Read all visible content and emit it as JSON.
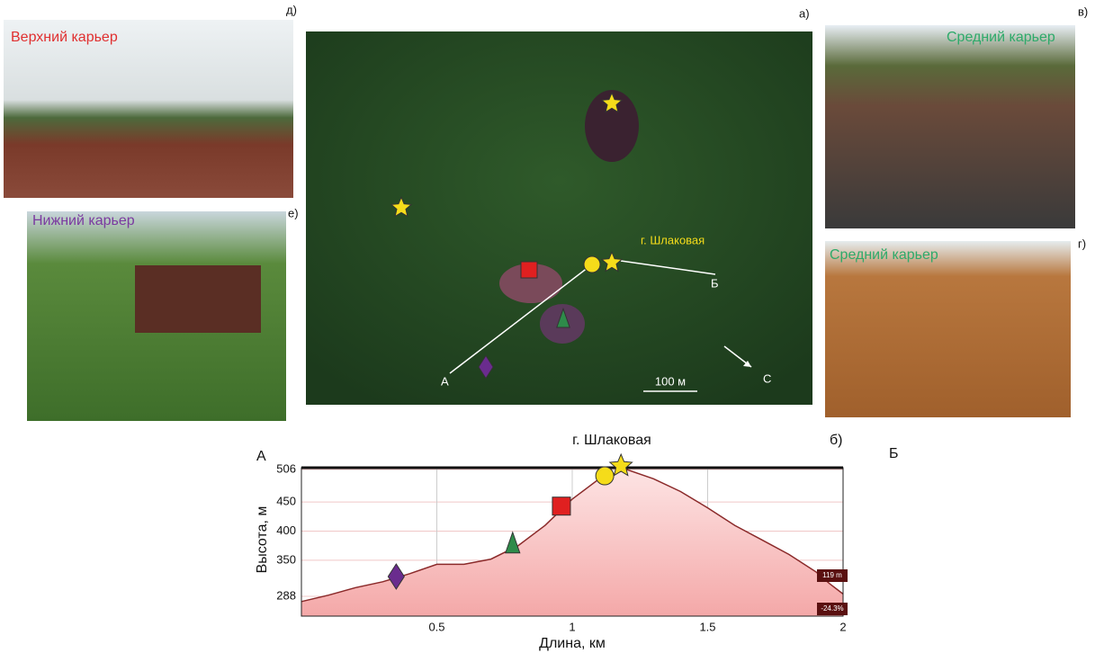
{
  "panels": {
    "d": {
      "label": "д)",
      "caption": "Верхний карьер"
    },
    "e": {
      "label": "е)",
      "caption": "Нижний карьер"
    },
    "a": {
      "label": "а)",
      "peak": "г. Шлаковая",
      "point_a": "А",
      "point_b": "Б",
      "north": "С",
      "scale": "100 м"
    },
    "v": {
      "label": "в)",
      "caption": "Средний карьер"
    },
    "g": {
      "label": "г)",
      "caption": "Средний карьер"
    }
  },
  "chart_data": {
    "type": "area",
    "panel_label": "б)",
    "start_label": "А",
    "end_label": "Б",
    "title": "г. Шлаковая",
    "x_label": "Длина, км",
    "y_label": "Высота, м",
    "x": [
      0,
      0.1,
      0.2,
      0.3,
      0.4,
      0.5,
      0.6,
      0.7,
      0.8,
      0.9,
      1.0,
      1.1,
      1.2,
      1.3,
      1.4,
      1.5,
      1.6,
      1.7,
      1.8,
      1.9,
      1.95,
      2.0
    ],
    "values": [
      279,
      290,
      303,
      313,
      327,
      343,
      343,
      352,
      375,
      410,
      455,
      490,
      506,
      490,
      468,
      440,
      410,
      385,
      360,
      330,
      310,
      292
    ],
    "color": "#8b2a2a",
    "fill": "#f4b6b6",
    "xlim": [
      0,
      2
    ],
    "xticks": [
      0.5,
      1,
      1.5,
      2
    ],
    "ylim": [
      254,
      509
    ],
    "yticks": [
      288,
      350,
      400,
      450,
      506
    ],
    "grid": true,
    "annotations": [
      "119 m",
      "-24.3%"
    ],
    "markers": [
      {
        "shape": "diamond",
        "color": "#6a2c8e",
        "x": 0.35,
        "y": 322
      },
      {
        "shape": "triangle",
        "color": "#2e8b4a",
        "x": 0.78,
        "y": 378
      },
      {
        "shape": "square",
        "color": "#e02020",
        "x": 0.96,
        "y": 443
      },
      {
        "shape": "circle",
        "color": "#f5dc1a",
        "x": 1.12,
        "y": 495
      },
      {
        "shape": "star",
        "color": "#f5dc1a",
        "x": 1.18,
        "y": 512
      }
    ]
  }
}
